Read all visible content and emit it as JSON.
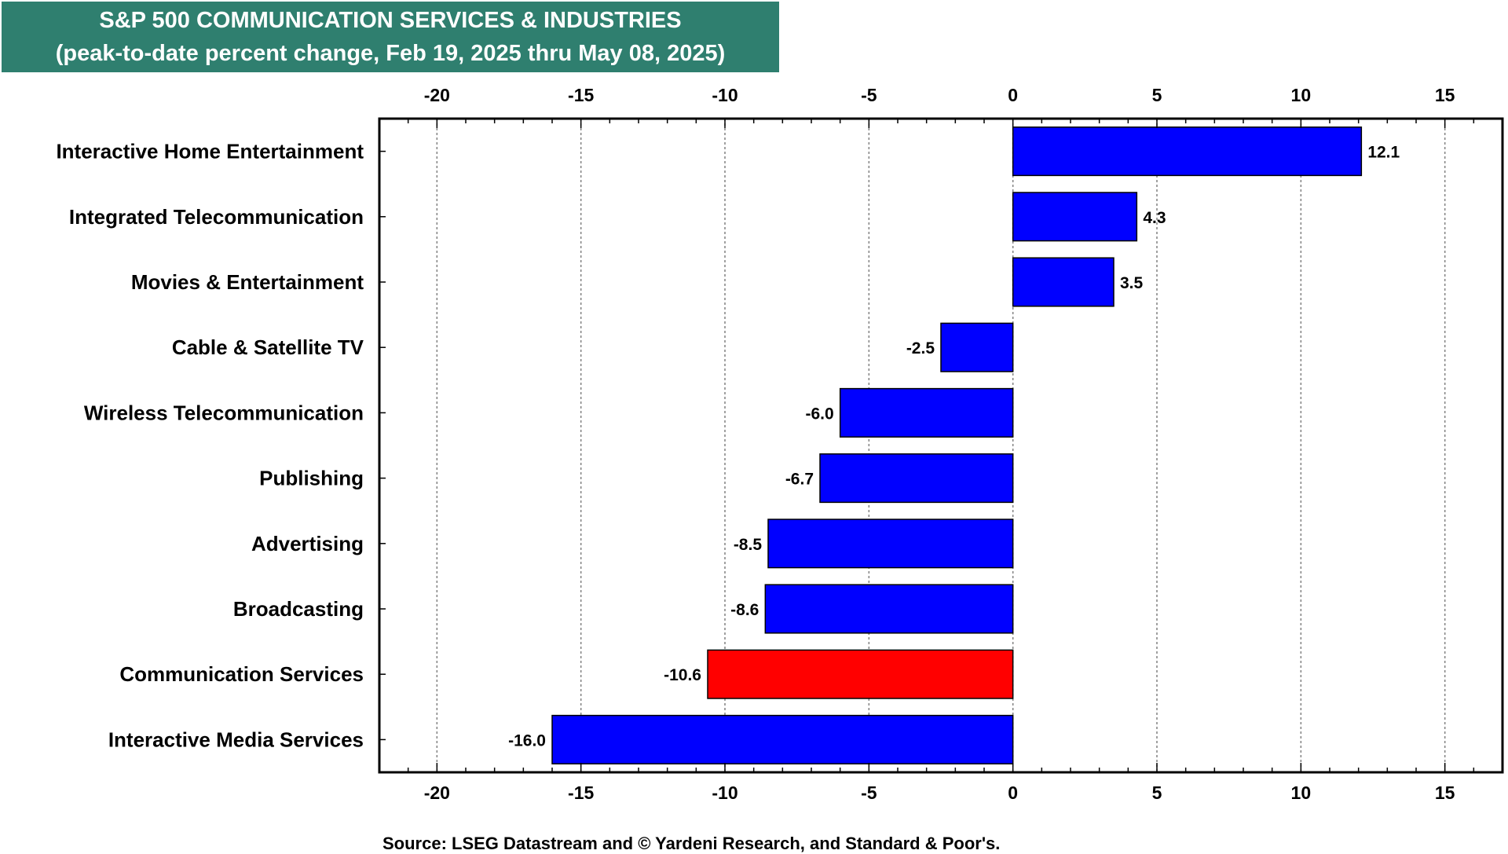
{
  "title_line1": "S&P 500 COMMUNICATION SERVICES & INDUSTRIES",
  "title_line2": "(peak-to-date percent change, Feb 19, 2025 thru May 08, 2025)",
  "source": "Source: LSEG Datastream and © Yardeni Research, and Standard & Poor's.",
  "colors": {
    "title_bg": "#2f7f6f",
    "bar_default": "#0000ff",
    "bar_highlight": "#ff0000"
  },
  "chart_data": {
    "type": "bar",
    "orientation": "horizontal",
    "title": "S&P 500 COMMUNICATION SERVICES & INDUSTRIES",
    "subtitle": "(peak-to-date percent change, Feb 19, 2025 thru May 08, 2025)",
    "xlabel": "",
    "ylabel": "",
    "xlim": [
      -22,
      17
    ],
    "xticks": [
      -20,
      -15,
      -10,
      -5,
      0,
      5,
      10,
      15
    ],
    "grid": "vertical-dotted",
    "axis_labels_top_and_bottom": true,
    "categories": [
      "Interactive Home Entertainment",
      "Integrated Telecommunication",
      "Movies & Entertainment",
      "Cable & Satellite TV",
      "Wireless Telecommunication",
      "Publishing",
      "Advertising",
      "Broadcasting",
      "Communication Services",
      "Interactive Media Services"
    ],
    "values": [
      12.1,
      4.3,
      3.5,
      -2.5,
      -6.0,
      -6.7,
      -8.5,
      -8.6,
      -10.6,
      -16.0
    ],
    "value_labels": [
      "12.1",
      "4.3",
      "3.5",
      "-2.5",
      "-6.0",
      "-6.7",
      "-8.5",
      "-8.6",
      "-10.6",
      "-16.0"
    ],
    "highlight": [
      "Communication Services"
    ]
  }
}
